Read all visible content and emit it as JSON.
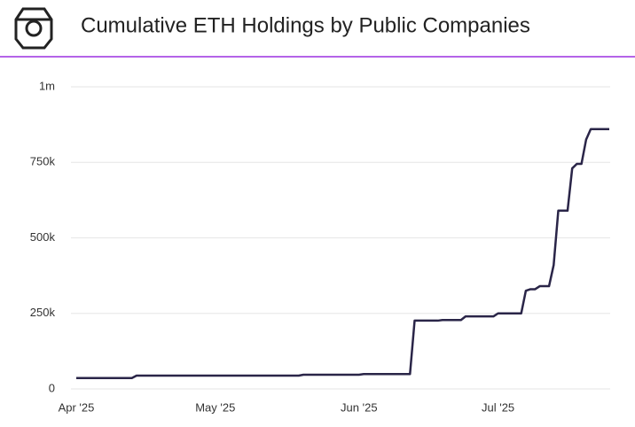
{
  "chart_data": {
    "type": "line",
    "title": "Cumulative ETH Holdings by Public Companies",
    "categories": [
      "Apr '25",
      null,
      null,
      null,
      null,
      null,
      null,
      null,
      null,
      null,
      null,
      null,
      null,
      null,
      null,
      null,
      null,
      null,
      null,
      null,
      null,
      null,
      null,
      null,
      null,
      null,
      null,
      null,
      null,
      null,
      "May '25",
      null,
      null,
      null,
      null,
      null,
      null,
      null,
      null,
      null,
      null,
      null,
      null,
      null,
      null,
      null,
      null,
      null,
      null,
      null,
      null,
      null,
      null,
      null,
      null,
      null,
      null,
      null,
      null,
      null,
      null,
      "Jun '25",
      null,
      null,
      null,
      null,
      null,
      null,
      null,
      null,
      null,
      null,
      null,
      null,
      null,
      null,
      null,
      null,
      null,
      null,
      null,
      null,
      null,
      null,
      null,
      null,
      null,
      null,
      null,
      null,
      null,
      "Jul '25",
      null,
      null,
      null,
      null,
      null,
      null,
      null,
      null,
      null,
      null,
      null,
      null,
      null,
      null,
      null,
      null,
      null,
      null,
      null,
      null,
      null,
      null,
      null,
      null
    ],
    "series": [
      {
        "name": "ETH holdings",
        "color": "#2a2548",
        "values": [
          36000,
          36000,
          36000,
          36000,
          36000,
          36000,
          36000,
          36000,
          36000,
          36000,
          36000,
          36000,
          36000,
          44000,
          44000,
          44000,
          44000,
          44000,
          44000,
          44000,
          44000,
          44000,
          44000,
          44000,
          44000,
          44000,
          44000,
          44000,
          44000,
          44000,
          44000,
          44000,
          44000,
          44000,
          44000,
          44000,
          44000,
          44000,
          44000,
          44000,
          44000,
          44000,
          44000,
          44000,
          44000,
          44000,
          44000,
          44000,
          44000,
          47000,
          47000,
          47000,
          47000,
          47000,
          47000,
          47000,
          47000,
          47000,
          47000,
          47000,
          47000,
          47000,
          49000,
          49000,
          49000,
          49000,
          49000,
          49000,
          49000,
          49000,
          49000,
          49000,
          49000,
          226000,
          226000,
          226000,
          226000,
          226000,
          226000,
          228000,
          228000,
          228000,
          228000,
          228000,
          240000,
          240000,
          240000,
          240000,
          240000,
          240000,
          240000,
          250000,
          250000,
          250000,
          250000,
          250000,
          250000,
          325000,
          330000,
          330000,
          340000,
          340000,
          340000,
          410000,
          590000,
          590000,
          590000,
          730000,
          745000,
          745000,
          825000,
          860000,
          860000,
          860000,
          860000,
          860000
        ]
      }
    ],
    "ylim": [
      0,
      1000000
    ],
    "yticks": [
      0,
      {
        "value": 250000,
        "label": "250k"
      },
      {
        "value": 500000,
        "label": "500k"
      },
      {
        "value": 750000,
        "label": "750k"
      },
      {
        "value": 1000000,
        "label": "1m"
      }
    ],
    "grid": true
  }
}
